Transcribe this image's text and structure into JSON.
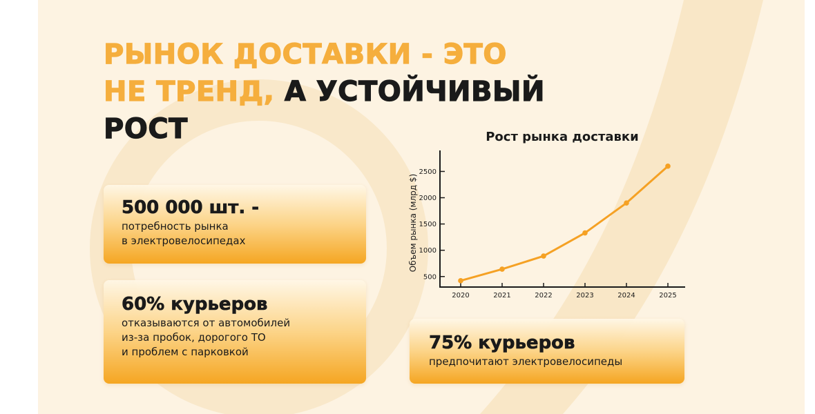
{
  "headline": {
    "accent_line1": "Рынок доставки - это",
    "accent_line2": "не тренд,",
    "dark_line2": " а устойчивый",
    "dark_line3": "рост"
  },
  "cards": [
    {
      "title": "500 000 шт. -",
      "lines": [
        "потребность рынка",
        "в электровелосипедах"
      ]
    },
    {
      "title": "60% курьеров",
      "lines": [
        "отказываются от автомобилей",
        "из-за пробок, дорогого ТО",
        "и проблем с парковкой"
      ]
    },
    {
      "title": "75% курьеров",
      "lines": [
        "предпочитают электровелосипеды"
      ]
    }
  ],
  "colors": {
    "accent": "#f5ae3d",
    "line": "#f5a124",
    "text": "#1a1a1a",
    "background": "#fdf3e2"
  },
  "chart_data": {
    "type": "line",
    "title": "Рост рынка доставки",
    "xlabel": "",
    "ylabel": "Объем рынка (млрд $)",
    "x": [
      "2020",
      "2021",
      "2022",
      "2023",
      "2024",
      "2025"
    ],
    "series": [
      {
        "values": [
          420,
          640,
          890,
          1330,
          1900,
          2600
        ]
      }
    ],
    "y_ticks": [
      500,
      1000,
      1500,
      2000,
      2500
    ],
    "ylim": [
      300,
      2900
    ],
    "grid": false,
    "legend": "none"
  }
}
